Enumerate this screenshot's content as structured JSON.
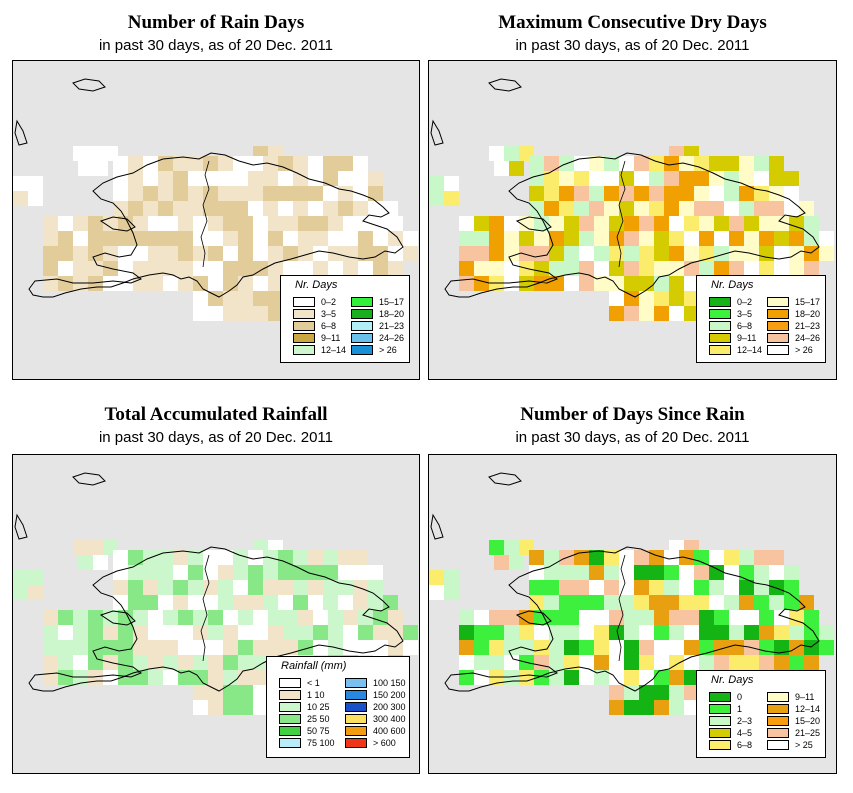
{
  "panels": [
    {
      "id": "rain_days",
      "title": "Number of Rain Days",
      "subtitle": "in past 30 days, as of  20 Dec. 2011",
      "legend": {
        "title": "Nr. Days",
        "items": [
          {
            "label": "0–2",
            "color": "#ffffff"
          },
          {
            "label": "3–5",
            "color": "#f1e4c8"
          },
          {
            "label": "6–8",
            "color": "#e1cc9a"
          },
          {
            "label": "9–11",
            "color": "#cca843"
          },
          {
            "label": "12–14",
            "color": "#ccf7cc"
          },
          {
            "label": "15–17",
            "color": "#33f03a"
          },
          {
            "label": "18–20",
            "color": "#18b01c"
          },
          {
            "label": "21–23",
            "color": "#b0eef8"
          },
          {
            "label": "24–26",
            "color": "#6cc0ee"
          },
          {
            "label": "> 26",
            "color": "#1890d8"
          }
        ]
      },
      "cell_palette": [
        "#ffffff",
        "#f1e4c8",
        "#e1cc9a"
      ]
    },
    {
      "id": "max_dry",
      "title": "Maximum Consecutive Dry Days",
      "subtitle": "in past 30 days, as of  20 Dec. 2011",
      "legend": {
        "title": "Nr. Days",
        "items": [
          {
            "label": "0–2",
            "color": "#14b414"
          },
          {
            "label": "3–5",
            "color": "#3ef03e"
          },
          {
            "label": "6–8",
            "color": "#c8f8c8"
          },
          {
            "label": "9–11",
            "color": "#d4cc00"
          },
          {
            "label": "12–14",
            "color": "#fcec6c"
          },
          {
            "label": "15–17",
            "color": "#fffcc8"
          },
          {
            "label": "18–20",
            "color": "#f0a000"
          },
          {
            "label": "21–23",
            "color": "#f89c10"
          },
          {
            "label": "24–26",
            "color": "#f8c4a0"
          },
          {
            "label": "> 26",
            "color": "#ffffff"
          }
        ]
      },
      "cell_palette": [
        "#d4cc00",
        "#f0a000",
        "#fcec6c",
        "#fffcc8",
        "#ffffff",
        "#f8c4a0",
        "#c8f8c8"
      ]
    },
    {
      "id": "total_rain",
      "title": "Total Accumulated Rainfall",
      "subtitle": "in past 30 days, as of  20 Dec. 2011",
      "legend": {
        "title": "Rainfall (mm)",
        "items": [
          {
            "label": "< 1",
            "color": "#ffffff"
          },
          {
            "label": "1    10",
            "color": "#f1e4c8"
          },
          {
            "label": "10    25",
            "color": "#ccf7cc"
          },
          {
            "label": "25    50",
            "color": "#88e888"
          },
          {
            "label": "50    75",
            "color": "#40d040"
          },
          {
            "label": "75  100",
            "color": "#b8ecf8"
          },
          {
            "label": "100  150",
            "color": "#78c0f0"
          },
          {
            "label": "150  200",
            "color": "#2888e0"
          },
          {
            "label": "200  300",
            "color": "#1850c8"
          },
          {
            "label": "300  400",
            "color": "#fce060"
          },
          {
            "label": "400  600",
            "color": "#f49c10"
          },
          {
            "label": "> 600",
            "color": "#f03418"
          }
        ]
      },
      "cell_palette": [
        "#ffffff",
        "#f1e4c8",
        "#ccf7cc",
        "#88e888"
      ]
    },
    {
      "id": "days_since",
      "title": "Number of Days Since Rain",
      "subtitle": "in past 30 days, as of  20 Dec. 2011",
      "legend": {
        "title": "Nr. Days",
        "items": [
          {
            "label": "0",
            "color": "#14b414"
          },
          {
            "label": "1",
            "color": "#3ef03e"
          },
          {
            "label": "2–3",
            "color": "#c8f8c8"
          },
          {
            "label": "4–5",
            "color": "#d4cc00"
          },
          {
            "label": "6–8",
            "color": "#fcec6c"
          },
          {
            "label": "9–11",
            "color": "#fffcc8"
          },
          {
            "label": "12–14",
            "color": "#e8a010"
          },
          {
            "label": "15–20",
            "color": "#f89c10"
          },
          {
            "label": "21–25",
            "color": "#f8c4a0"
          },
          {
            "label": "> 25",
            "color": "#ffffff"
          }
        ]
      },
      "cell_palette": [
        "#c8f8c8",
        "#3ef03e",
        "#14b414",
        "#ffffff",
        "#f8c4a0",
        "#e8a010",
        "#fcec6c"
      ]
    }
  ]
}
